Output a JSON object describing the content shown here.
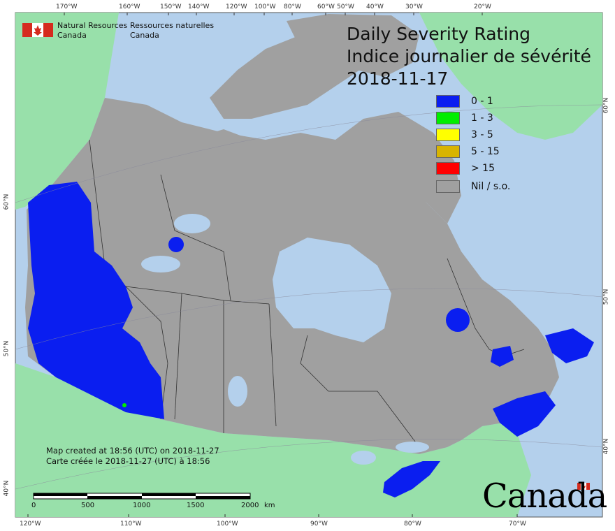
{
  "map": {
    "title_en": "Daily Severity Rating",
    "title_fr": "Indice journalier de sévérité",
    "date": "2018-11-17"
  },
  "agency": {
    "en_line1": "Natural Resources",
    "en_line2": "Canada",
    "fr_line1": "Ressources naturelles",
    "fr_line2": "Canada"
  },
  "legend": [
    {
      "label": "0 - 1",
      "color": "#0a1ef0"
    },
    {
      "label": "1 - 3",
      "color": "#00ee00"
    },
    {
      "label": "3 - 5",
      "color": "#ffff00"
    },
    {
      "label": "5 - 15",
      "color": "#d8b400"
    },
    {
      "label": "> 15",
      "color": "#ff0000"
    },
    {
      "label": "Nil / s.o.",
      "color": "#a0a0a0"
    }
  ],
  "credit": {
    "line_en": "Map created at 18:56 (UTC) on 2018-11-27",
    "line_fr": "Carte créée le 2018-11-27 (UTC) à 18:56"
  },
  "scale": {
    "labels": [
      "0",
      "500",
      "1000",
      "1500",
      "2000"
    ],
    "unit": "km"
  },
  "graticule": {
    "top": [
      "170°W",
      "160°W",
      "150°W",
      "140°W",
      "120°W",
      "100°W",
      "80°W",
      "60°W",
      "50°W",
      "40°W",
      "30°W",
      "20°W"
    ],
    "bottom": [
      "120°W",
      "110°W",
      "100°W",
      "90°W",
      "80°W",
      "70°W"
    ],
    "left": [
      "60°N",
      "50°N",
      "40°N"
    ],
    "right": [
      "60°N",
      "50°N",
      "40°N"
    ]
  },
  "wordmark": "Canada",
  "colors": {
    "water": "#b4d0ec",
    "foreign_land": "#98e0aa",
    "canada_nil": "#a0a0a0",
    "dsr_low": "#0a1ef0"
  }
}
